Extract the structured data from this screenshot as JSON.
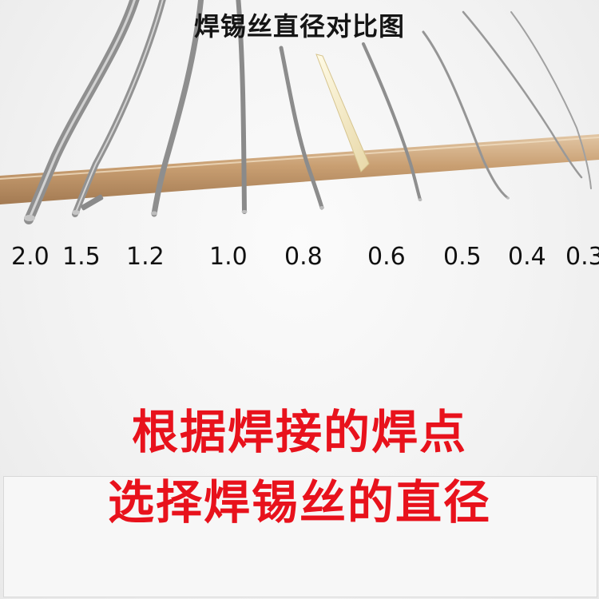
{
  "title": "焊锡丝直径对比图",
  "diameters": [
    "2.0",
    "1.5",
    "1.2",
    "1.0",
    "0.8",
    "0.6",
    "0.5",
    "0.4",
    "0.3"
  ],
  "slogan": {
    "line1": "根据焊接的焊点",
    "line2": "选择焊锡丝的直径"
  },
  "colors": {
    "slogan": "#e8121c",
    "stick": "#c9a27a",
    "wire": "#9a9a9a"
  }
}
